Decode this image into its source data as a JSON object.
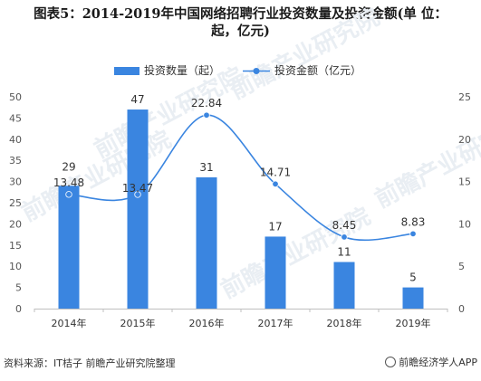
{
  "title": "图表5：2014-2019年中国网络招聘行业投资数量及投资金额(单 位：起，亿元)",
  "title_line1": "图表5：2014-2019年中国网络招聘行业投资数量及投资金额(单 位：",
  "title_line2": "起，亿元)",
  "source": "资料来源：IT桔子 前瞻产业研究院整理",
  "brand": "前瞻经济学人APP",
  "watermark": "前瞻产业研究院",
  "chart_data": {
    "type": "bar",
    "categories": [
      "2014年",
      "2015年",
      "2016年",
      "2017年",
      "2018年",
      "2019年"
    ],
    "series": [
      {
        "name": "投资数量（起）",
        "type": "bar",
        "axis": "left",
        "values": [
          29,
          47,
          31,
          17,
          11,
          5
        ],
        "labels": [
          "29",
          "47",
          "31",
          "17",
          "11",
          "5"
        ],
        "color": "#3a85e0"
      },
      {
        "name": "投资金额（亿元）",
        "type": "line",
        "axis": "right",
        "values": [
          13.48,
          13.47,
          22.84,
          14.71,
          8.45,
          8.83
        ],
        "labels": [
          "13.48",
          "13.47",
          "22.84",
          "14.71",
          "8.45",
          "8.83"
        ],
        "color": "#3a85e0"
      }
    ],
    "yleft": {
      "ylim": [
        0,
        50
      ],
      "ticks": [
        "0",
        "5",
        "10",
        "15",
        "20",
        "25",
        "30",
        "35",
        "40",
        "45",
        "50"
      ]
    },
    "yright": {
      "ylim": [
        0,
        25
      ],
      "ticks": [
        "0",
        "5",
        "10",
        "15",
        "20",
        "25"
      ]
    },
    "legend": "top",
    "grid": false
  }
}
